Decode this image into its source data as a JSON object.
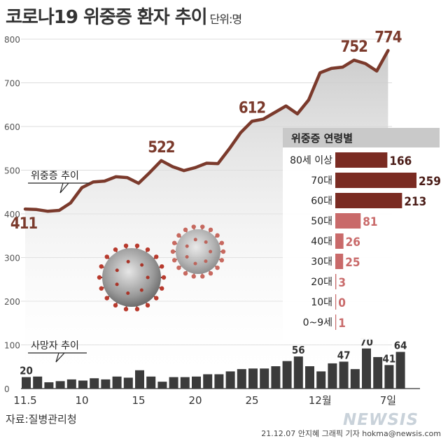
{
  "title": "코로나19 위중증 환자 추이",
  "unit_label": "단위:명",
  "source": "자료:질병관리청",
  "credit": "21.12.07 안지혜 그래픽 기자 hokma@newsis.com",
  "logo_text": "NEWSIS",
  "colors": {
    "line": "#7b3a2c",
    "bar_dark": "#3b3b3b",
    "age_dark": "#7a2b22",
    "age_light": "#c96a6a",
    "area": "#cbcbcb"
  },
  "chart_data": [
    {
      "type": "line",
      "title": "위중증 추이",
      "ylim": [
        0,
        800
      ],
      "yticks": [
        0,
        100,
        200,
        300,
        400,
        500,
        600,
        700,
        800
      ],
      "x": [
        "11.5",
        "11.6",
        "11.7",
        "11.8",
        "11.9",
        "11.10",
        "11.11",
        "11.12",
        "11.13",
        "11.14",
        "11.15",
        "11.16",
        "11.17",
        "11.18",
        "11.19",
        "11.20",
        "11.21",
        "11.22",
        "11.23",
        "11.24",
        "11.25",
        "11.26",
        "11.27",
        "11.28",
        "11.29",
        "11.30",
        "12.1",
        "12.2",
        "12.3",
        "12.4",
        "12.5",
        "12.6",
        "12.7"
      ],
      "values": [
        411,
        410,
        406,
        408,
        425,
        460,
        473,
        475,
        485,
        483,
        470,
        495,
        522,
        508,
        499,
        506,
        516,
        515,
        549,
        586,
        612,
        617,
        632,
        647,
        629,
        661,
        723,
        733,
        736,
        752,
        744,
        727,
        774
      ],
      "x_tick_labels": [
        {
          "index": 0,
          "label": "11.5"
        },
        {
          "index": 5,
          "label": "10"
        },
        {
          "index": 10,
          "label": "15"
        },
        {
          "index": 15,
          "label": "20"
        },
        {
          "index": 20,
          "label": "25"
        },
        {
          "index": 26,
          "label": "12월"
        },
        {
          "index": 32,
          "label": "7일"
        }
      ],
      "annotations": [
        {
          "index": 0,
          "label": "411"
        },
        {
          "index": 12,
          "label": "522"
        },
        {
          "index": 20,
          "label": "612"
        },
        {
          "index": 29,
          "label": "752"
        },
        {
          "index": 32,
          "label": "774"
        }
      ]
    },
    {
      "type": "bar",
      "title": "사망자 추이",
      "values": [
        20,
        21,
        11,
        13,
        16,
        14,
        18,
        16,
        21,
        19,
        32,
        21,
        12,
        20,
        20,
        21,
        25,
        25,
        30,
        34,
        35,
        35,
        39,
        48,
        56,
        39,
        30,
        44,
        47,
        34,
        70,
        55,
        41,
        64
      ],
      "annotations": [
        {
          "index": 0,
          "label": "20"
        },
        {
          "index": 24,
          "label": "56"
        },
        {
          "index": 28,
          "label": "47"
        },
        {
          "index": 30,
          "label": "70"
        },
        {
          "index": 32,
          "label": "41"
        },
        {
          "index": 33,
          "label": "64"
        }
      ]
    },
    {
      "type": "bar",
      "orientation": "horizontal",
      "title": "위중증 연령별",
      "categories": [
        "80세 이상",
        "70대",
        "60대",
        "50대",
        "40대",
        "30대",
        "20대",
        "10대",
        "0~9세"
      ],
      "values": [
        166,
        259,
        213,
        81,
        26,
        25,
        3,
        0,
        1
      ],
      "xlim": [
        0,
        259
      ]
    }
  ]
}
